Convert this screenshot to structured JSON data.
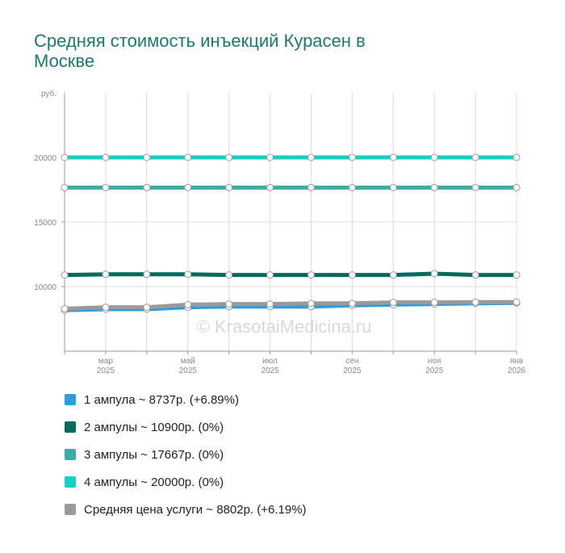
{
  "chart_data": {
    "type": "line",
    "title_lines": [
      "Средняя стоимость инъекций Курасен в",
      "Москве"
    ],
    "y_label": "руб.",
    "watermark": "© KrasotaiMedicina.ru",
    "categories": [
      null,
      "мар",
      null,
      "май",
      null,
      "июл",
      null,
      "сен",
      null,
      "ноя",
      null,
      "янв"
    ],
    "category_years": [
      null,
      "2025",
      null,
      "2025",
      null,
      "2025",
      null,
      "2025",
      null,
      "2025",
      null,
      "2026"
    ],
    "ylim": [
      5000,
      25000
    ],
    "yticks": [
      10000,
      15000,
      20000
    ],
    "grid": true,
    "series": [
      {
        "name": "1 ампула ~ 8737р. (+6.89%)",
        "color": "#2b9fdc",
        "values": [
          8174,
          8250,
          8250,
          8400,
          8450,
          8450,
          8450,
          8550,
          8600,
          8650,
          8700,
          8737
        ]
      },
      {
        "name": "2 ампулы ~ 10900р. (0%)",
        "color": "#006b5e",
        "values": [
          10900,
          10950,
          10950,
          10950,
          10900,
          10900,
          10900,
          10900,
          10900,
          11000,
          10900,
          10900
        ]
      },
      {
        "name": "3 ампулы ~ 17667р. (0%)",
        "color": "#3aaea2",
        "values": [
          17667,
          17667,
          17667,
          17667,
          17667,
          17667,
          17667,
          17667,
          17667,
          17667,
          17667,
          17667
        ]
      },
      {
        "name": "4 ампулы ~ 20000р. (0%)",
        "color": "#14cfc4",
        "values": [
          20000,
          20000,
          20000,
          20000,
          20000,
          20000,
          20000,
          20000,
          20000,
          20000,
          20000,
          20000
        ]
      },
      {
        "name": "Средняя цена услуги ~ 8802р. (+6.19%)",
        "color": "#9a9a9a",
        "values": [
          8289,
          8400,
          8400,
          8600,
          8650,
          8650,
          8700,
          8700,
          8780,
          8780,
          8800,
          8802
        ]
      }
    ]
  }
}
